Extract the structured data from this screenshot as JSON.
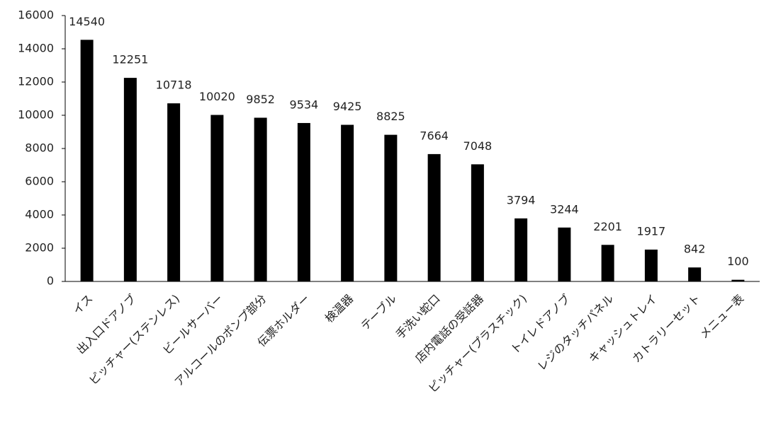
{
  "chart_data": {
    "type": "bar",
    "categories": [
      "イス",
      "出入口ドアノブ",
      "ピッチャー(ステンレス)",
      "ビールサーバー",
      "アルコールのポンプ部分",
      "伝票ホルダー",
      "検温器",
      "テーブル",
      "手洗い蛇口",
      "店内電話の受話器",
      "ピッチャー(プラスチック)",
      "トイレドアノブ",
      "レジのタッチパネル",
      "キャッシュトレイ",
      "カトラリーセット",
      "メニュー表"
    ],
    "values": [
      14540,
      12251,
      10718,
      10020,
      9852,
      9534,
      9425,
      8825,
      7664,
      7048,
      3794,
      3244,
      2201,
      1917,
      842,
      100
    ],
    "color": "#000000",
    "ylim": [
      0,
      16000
    ],
    "yticks": [
      0,
      2000,
      4000,
      6000,
      8000,
      10000,
      12000,
      14000,
      16000
    ],
    "grid": false
  }
}
